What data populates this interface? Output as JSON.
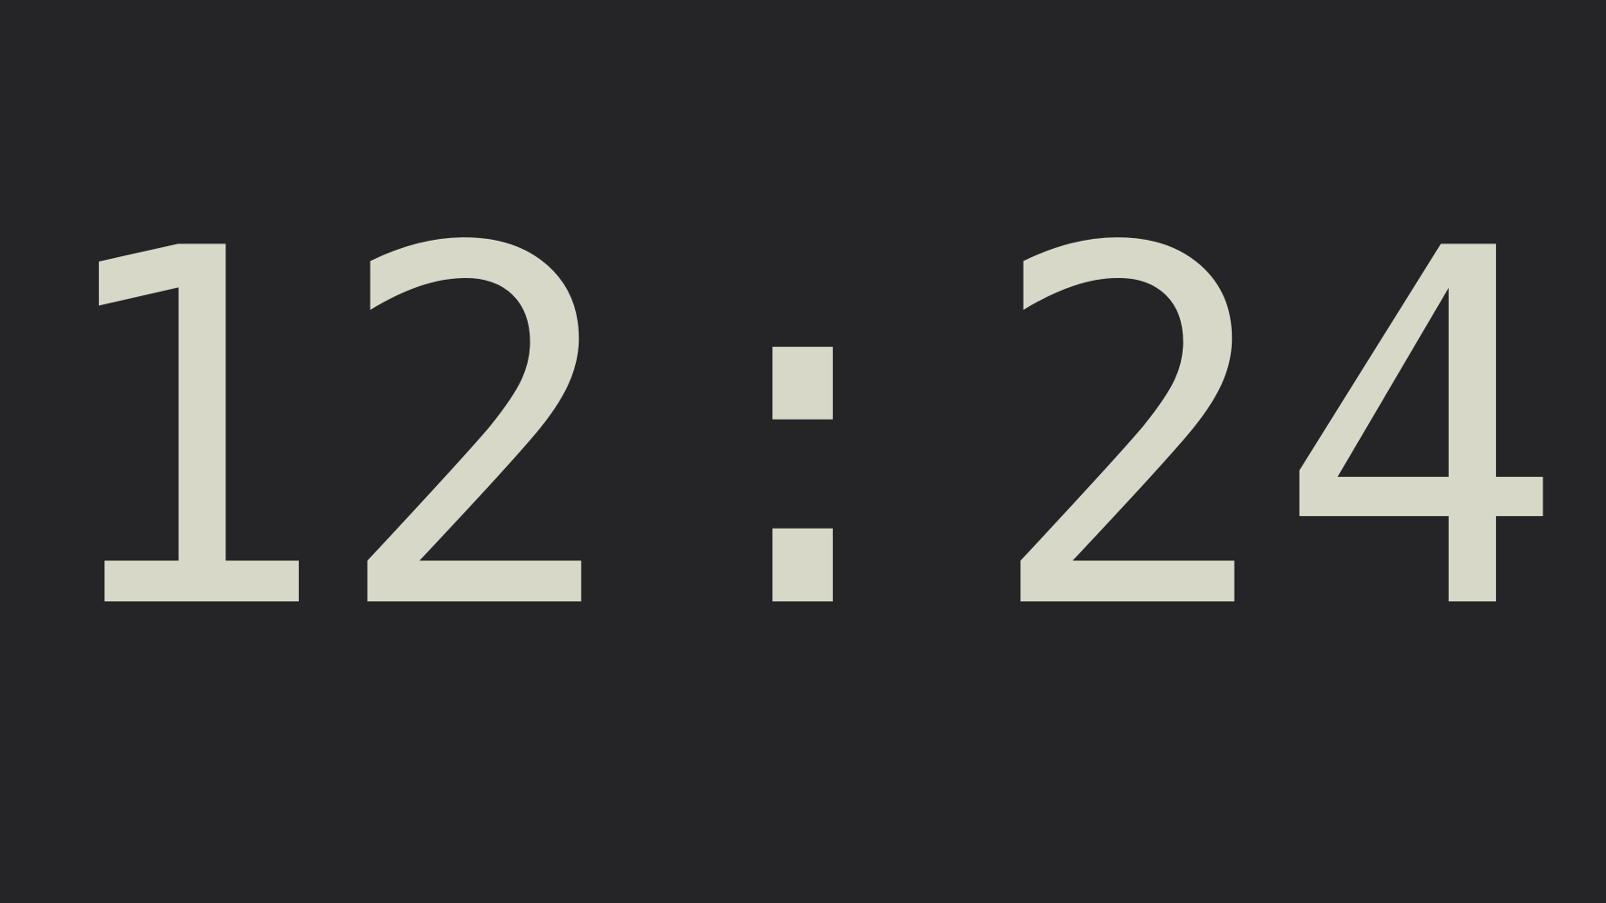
{
  "clock": {
    "hours": "12",
    "separator": ":",
    "minutes": "24",
    "text_color": "#d7d8c7",
    "background_color": "#252427"
  }
}
